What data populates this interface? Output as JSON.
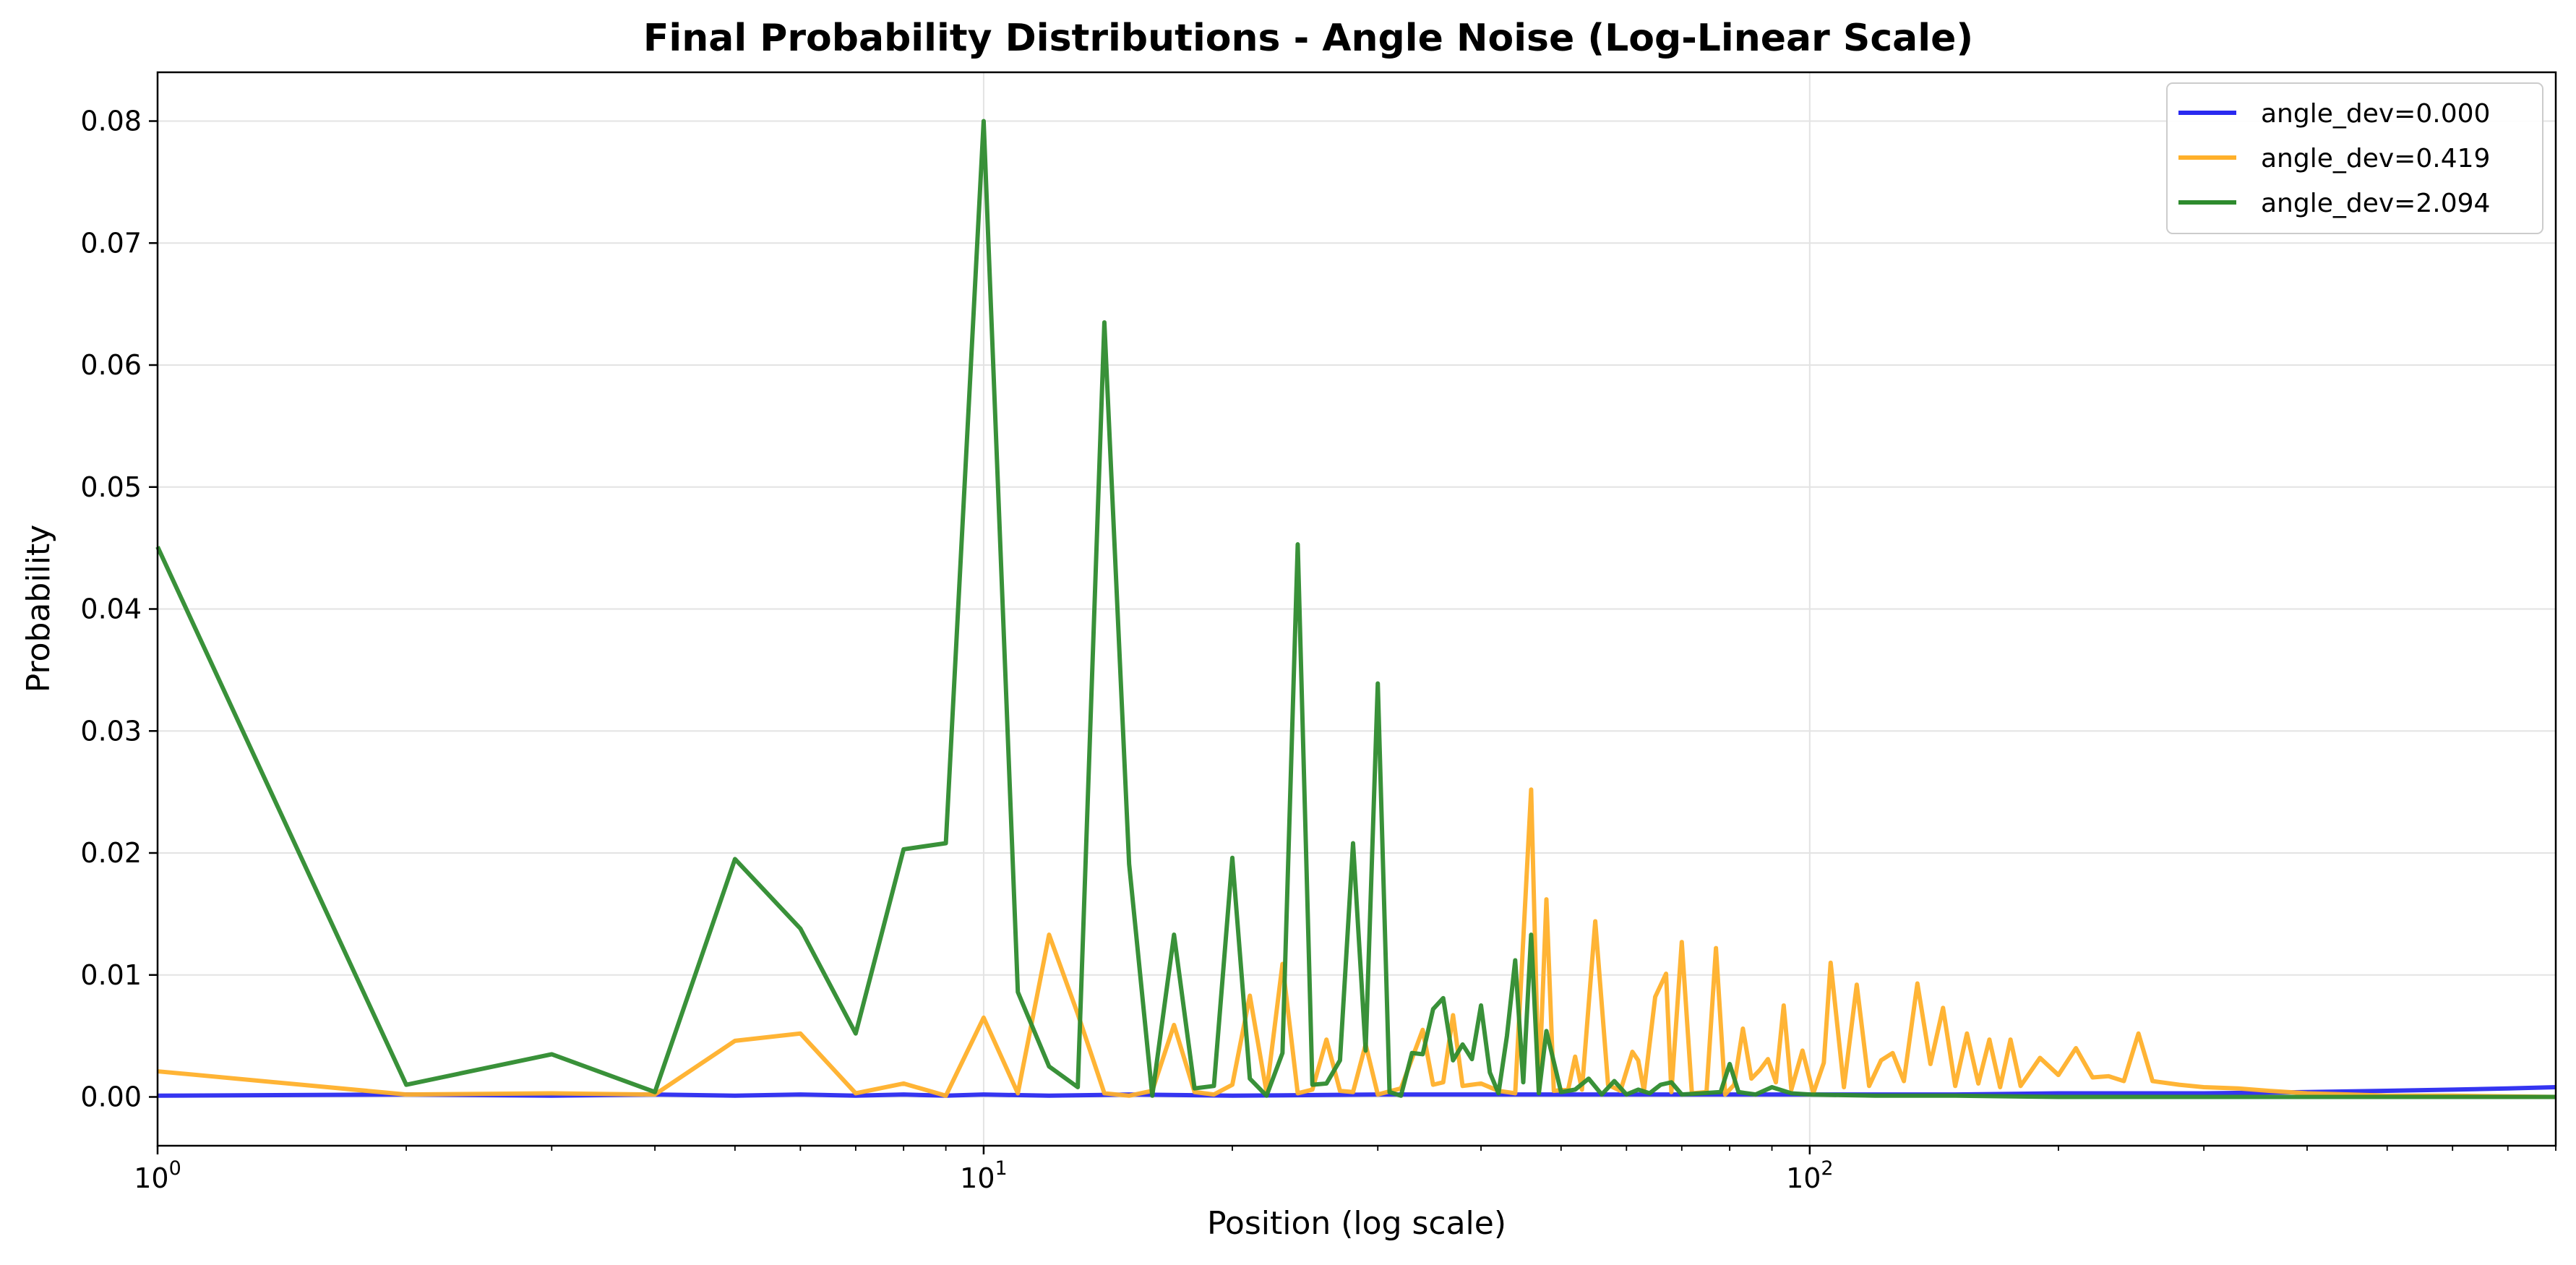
{
  "chart_data": {
    "type": "line",
    "title": "Final Probability Distributions - Angle Noise (Log-Linear Scale)",
    "xlabel": "Position (log scale)",
    "ylabel": "Probability",
    "xscale": "log",
    "xlim": [
      1,
      800
    ],
    "ylim": [
      -0.004,
      0.084
    ],
    "grid": true,
    "legend_position": "top-right",
    "x_ticks": [
      1,
      10,
      100
    ],
    "x_tick_labels": [
      {
        "base": "10",
        "exp": "0"
      },
      {
        "base": "10",
        "exp": "1"
      },
      {
        "base": "10",
        "exp": "2"
      }
    ],
    "y_ticks": [
      0.0,
      0.01,
      0.02,
      0.03,
      0.04,
      0.05,
      0.06,
      0.07,
      0.08
    ],
    "y_tick_labels": [
      "0.00",
      "0.01",
      "0.02",
      "0.03",
      "0.04",
      "0.05",
      "0.06",
      "0.07",
      "0.08"
    ],
    "series": [
      {
        "name": "angle_dev=0.000",
        "color": "#2a2af0",
        "points": [
          [
            1,
            0.0001
          ],
          [
            2,
            0.0002
          ],
          [
            3,
            0.0001
          ],
          [
            4,
            0.0002
          ],
          [
            5,
            0.0001
          ],
          [
            6,
            0.0002
          ],
          [
            7,
            0.0001
          ],
          [
            8,
            0.0002
          ],
          [
            9,
            0.0001
          ],
          [
            10,
            0.0002
          ],
          [
            12,
            0.0001
          ],
          [
            15,
            0.0002
          ],
          [
            20,
            0.0001
          ],
          [
            30,
            0.0002
          ],
          [
            50,
            0.0002
          ],
          [
            100,
            0.0002
          ],
          [
            150,
            0.0002
          ],
          [
            200,
            0.0003
          ],
          [
            300,
            0.0003
          ],
          [
            400,
            0.0004
          ],
          [
            500,
            0.0005
          ],
          [
            600,
            0.0006
          ],
          [
            700,
            0.0007
          ],
          [
            800,
            0.0008
          ]
        ]
      },
      {
        "name": "angle_dev=0.419",
        "color": "#ffb02a",
        "points": [
          [
            1,
            0.0021
          ],
          [
            2,
            0.0002
          ],
          [
            3,
            0.0003
          ],
          [
            4,
            0.0002
          ],
          [
            5,
            0.0046
          ],
          [
            6,
            0.0052
          ],
          [
            7,
            0.0003
          ],
          [
            8,
            0.0011
          ],
          [
            9,
            0.0001
          ],
          [
            10,
            0.0065
          ],
          [
            11,
            0.0003
          ],
          [
            12,
            0.0133
          ],
          [
            13,
            0.0068
          ],
          [
            14,
            0.0003
          ],
          [
            15,
            0.0001
          ],
          [
            16,
            0.0005
          ],
          [
            17,
            0.0059
          ],
          [
            18,
            0.0004
          ],
          [
            19,
            0.0002
          ],
          [
            20,
            0.001
          ],
          [
            21,
            0.0083
          ],
          [
            22,
            0.0004
          ],
          [
            23,
            0.0109
          ],
          [
            24,
            0.0003
          ],
          [
            25,
            0.0006
          ],
          [
            26,
            0.0047
          ],
          [
            27,
            0.0005
          ],
          [
            28,
            0.0004
          ],
          [
            29,
            0.0043
          ],
          [
            30,
            0.0002
          ],
          [
            32,
            0.0007
          ],
          [
            34,
            0.0055
          ],
          [
            35,
            0.001
          ],
          [
            36,
            0.0012
          ],
          [
            37,
            0.0067
          ],
          [
            38,
            0.0009
          ],
          [
            40,
            0.0011
          ],
          [
            42,
            0.0005
          ],
          [
            44,
            0.0003
          ],
          [
            46,
            0.0252
          ],
          [
            47,
            0.0004
          ],
          [
            48,
            0.0162
          ],
          [
            49,
            0.0005
          ],
          [
            51,
            0.0006
          ],
          [
            52,
            0.0033
          ],
          [
            53,
            0.0006
          ],
          [
            55,
            0.0144
          ],
          [
            57,
            0.001
          ],
          [
            59,
            0.0005
          ],
          [
            61,
            0.0037
          ],
          [
            62,
            0.003
          ],
          [
            63,
            0.0005
          ],
          [
            65,
            0.0082
          ],
          [
            67,
            0.0101
          ],
          [
            68,
            0.0004
          ],
          [
            70,
            0.0127
          ],
          [
            72,
            0.0003
          ],
          [
            75,
            0.0004
          ],
          [
            77,
            0.0122
          ],
          [
            79,
            0.0002
          ],
          [
            81,
            0.001
          ],
          [
            83,
            0.0056
          ],
          [
            85,
            0.0015
          ],
          [
            87,
            0.0022
          ],
          [
            89,
            0.0031
          ],
          [
            91,
            0.0012
          ],
          [
            93,
            0.0075
          ],
          [
            95,
            0.0006
          ],
          [
            98,
            0.0038
          ],
          [
            101,
            0.0003
          ],
          [
            104,
            0.0028
          ],
          [
            106,
            0.011
          ],
          [
            110,
            0.0008
          ],
          [
            114,
            0.0092
          ],
          [
            118,
            0.0009
          ],
          [
            122,
            0.003
          ],
          [
            126,
            0.0036
          ],
          [
            130,
            0.0013
          ],
          [
            135,
            0.0093
          ],
          [
            140,
            0.0027
          ],
          [
            145,
            0.0073
          ],
          [
            150,
            0.0009
          ],
          [
            155,
            0.0052
          ],
          [
            160,
            0.0011
          ],
          [
            165,
            0.0047
          ],
          [
            170,
            0.0008
          ],
          [
            175,
            0.0047
          ],
          [
            180,
            0.0009
          ],
          [
            190,
            0.0032
          ],
          [
            200,
            0.0018
          ],
          [
            210,
            0.004
          ],
          [
            220,
            0.0016
          ],
          [
            230,
            0.0017
          ],
          [
            240,
            0.0013
          ],
          [
            250,
            0.0052
          ],
          [
            260,
            0.0013
          ],
          [
            280,
            0.001
          ],
          [
            300,
            0.0008
          ],
          [
            330,
            0.0007
          ],
          [
            360,
            0.0005
          ],
          [
            400,
            0.0003
          ],
          [
            450,
            0.0002
          ],
          [
            500,
            0.0001
          ],
          [
            600,
            0.0001
          ],
          [
            800,
            0.0
          ]
        ]
      },
      {
        "name": "angle_dev=2.094",
        "color": "#2e8b2e",
        "points": [
          [
            1,
            0.0451
          ],
          [
            2,
            0.001
          ],
          [
            3,
            0.0035
          ],
          [
            4,
            0.0004
          ],
          [
            5,
            0.0195
          ],
          [
            6,
            0.0138
          ],
          [
            7,
            0.0052
          ],
          [
            8,
            0.0203
          ],
          [
            9,
            0.0208
          ],
          [
            10,
            0.08
          ],
          [
            11,
            0.0086
          ],
          [
            12,
            0.0025
          ],
          [
            13,
            0.0008
          ],
          [
            14,
            0.0635
          ],
          [
            15,
            0.0191
          ],
          [
            16,
            0.0001
          ],
          [
            17,
            0.0133
          ],
          [
            18,
            0.0007
          ],
          [
            19,
            0.0009
          ],
          [
            20,
            0.0196
          ],
          [
            21,
            0.0015
          ],
          [
            22,
            0.0001
          ],
          [
            23,
            0.0036
          ],
          [
            24,
            0.0453
          ],
          [
            25,
            0.001
          ],
          [
            26,
            0.0011
          ],
          [
            27,
            0.003
          ],
          [
            28,
            0.0208
          ],
          [
            29,
            0.0038
          ],
          [
            30,
            0.0339
          ],
          [
            31,
            0.0004
          ],
          [
            32,
            0.0001
          ],
          [
            33,
            0.0036
          ],
          [
            34,
            0.0035
          ],
          [
            35,
            0.0072
          ],
          [
            36,
            0.0081
          ],
          [
            37,
            0.003
          ],
          [
            38,
            0.0043
          ],
          [
            39,
            0.0031
          ],
          [
            40,
            0.0075
          ],
          [
            41,
            0.002
          ],
          [
            42,
            0.0003
          ],
          [
            43,
            0.005
          ],
          [
            44,
            0.0112
          ],
          [
            45,
            0.0012
          ],
          [
            46,
            0.0133
          ],
          [
            47,
            0.0003
          ],
          [
            48,
            0.0054
          ],
          [
            50,
            0.0004
          ],
          [
            52,
            0.0006
          ],
          [
            54,
            0.0015
          ],
          [
            56,
            0.0002
          ],
          [
            58,
            0.0013
          ],
          [
            60,
            0.0002
          ],
          [
            62,
            0.0006
          ],
          [
            64,
            0.0003
          ],
          [
            66,
            0.001
          ],
          [
            68,
            0.0012
          ],
          [
            70,
            0.0002
          ],
          [
            74,
            0.0003
          ],
          [
            78,
            0.0004
          ],
          [
            80,
            0.0027
          ],
          [
            82,
            0.0004
          ],
          [
            86,
            0.0002
          ],
          [
            90,
            0.0008
          ],
          [
            95,
            0.0003
          ],
          [
            100,
            0.0002
          ],
          [
            120,
            0.0001
          ],
          [
            150,
            0.0001
          ],
          [
            200,
            0.0
          ],
          [
            300,
            0.0
          ],
          [
            500,
            0.0
          ],
          [
            800,
            0.0
          ]
        ]
      }
    ]
  }
}
